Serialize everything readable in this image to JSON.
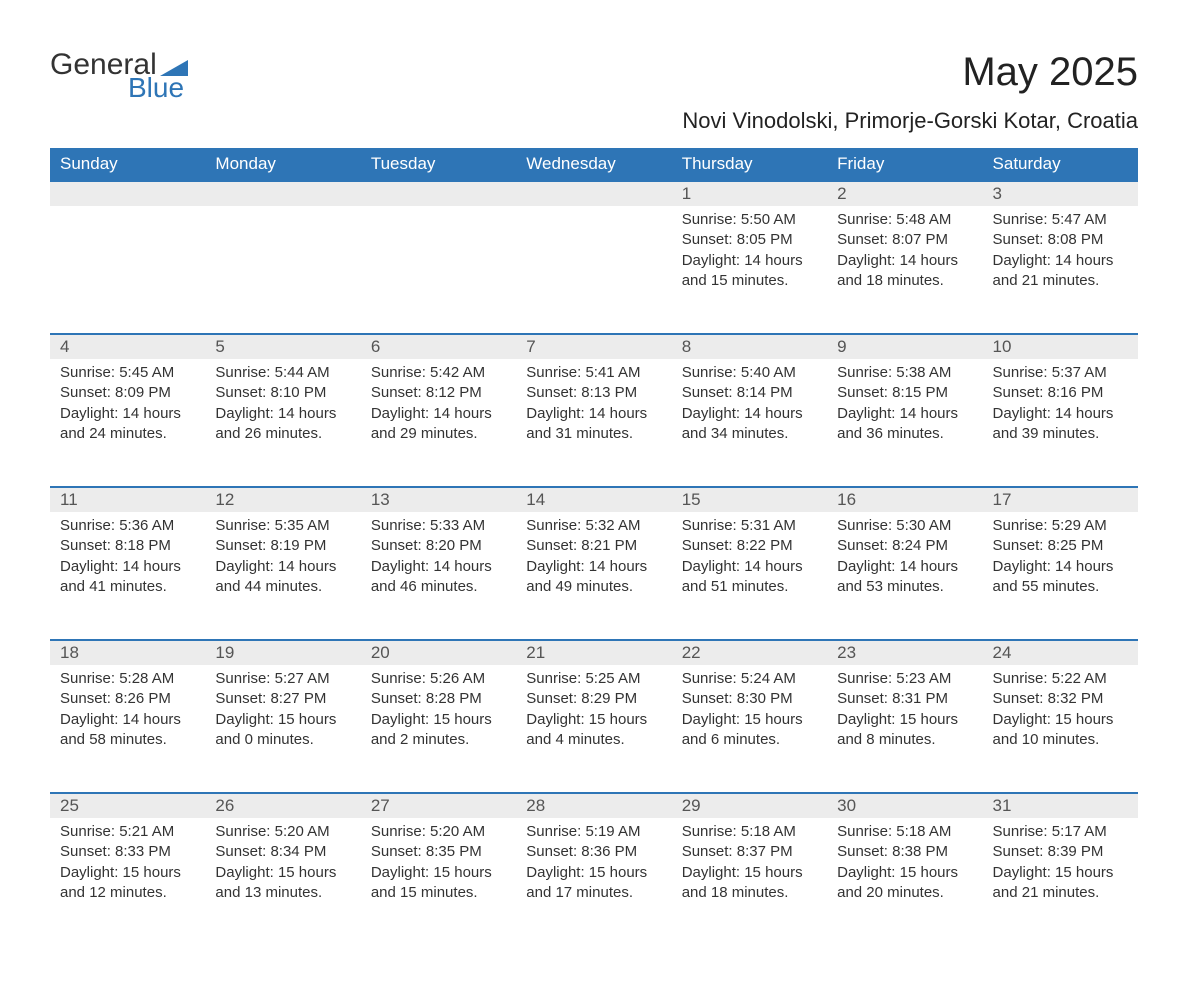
{
  "logo": {
    "line1": "General",
    "line2": "Blue",
    "accent_color": "#2e75b6"
  },
  "title": "May 2025",
  "subtitle": "Novi Vinodolski, Primorje-Gorski Kotar, Croatia",
  "colors": {
    "header_bg": "#2e75b6",
    "header_text": "#ffffff",
    "daynum_bg": "#ececec",
    "row_border": "#2e75b6",
    "body_text": "#333333"
  },
  "weekday_labels": [
    "Sunday",
    "Monday",
    "Tuesday",
    "Wednesday",
    "Thursday",
    "Friday",
    "Saturday"
  ],
  "weeks": [
    [
      null,
      null,
      null,
      null,
      {
        "n": "1",
        "sr": "Sunrise: 5:50 AM",
        "ss": "Sunset: 8:05 PM",
        "dl": "Daylight: 14 hours and 15 minutes."
      },
      {
        "n": "2",
        "sr": "Sunrise: 5:48 AM",
        "ss": "Sunset: 8:07 PM",
        "dl": "Daylight: 14 hours and 18 minutes."
      },
      {
        "n": "3",
        "sr": "Sunrise: 5:47 AM",
        "ss": "Sunset: 8:08 PM",
        "dl": "Daylight: 14 hours and 21 minutes."
      }
    ],
    [
      {
        "n": "4",
        "sr": "Sunrise: 5:45 AM",
        "ss": "Sunset: 8:09 PM",
        "dl": "Daylight: 14 hours and 24 minutes."
      },
      {
        "n": "5",
        "sr": "Sunrise: 5:44 AM",
        "ss": "Sunset: 8:10 PM",
        "dl": "Daylight: 14 hours and 26 minutes."
      },
      {
        "n": "6",
        "sr": "Sunrise: 5:42 AM",
        "ss": "Sunset: 8:12 PM",
        "dl": "Daylight: 14 hours and 29 minutes."
      },
      {
        "n": "7",
        "sr": "Sunrise: 5:41 AM",
        "ss": "Sunset: 8:13 PM",
        "dl": "Daylight: 14 hours and 31 minutes."
      },
      {
        "n": "8",
        "sr": "Sunrise: 5:40 AM",
        "ss": "Sunset: 8:14 PM",
        "dl": "Daylight: 14 hours and 34 minutes."
      },
      {
        "n": "9",
        "sr": "Sunrise: 5:38 AM",
        "ss": "Sunset: 8:15 PM",
        "dl": "Daylight: 14 hours and 36 minutes."
      },
      {
        "n": "10",
        "sr": "Sunrise: 5:37 AM",
        "ss": "Sunset: 8:16 PM",
        "dl": "Daylight: 14 hours and 39 minutes."
      }
    ],
    [
      {
        "n": "11",
        "sr": "Sunrise: 5:36 AM",
        "ss": "Sunset: 8:18 PM",
        "dl": "Daylight: 14 hours and 41 minutes."
      },
      {
        "n": "12",
        "sr": "Sunrise: 5:35 AM",
        "ss": "Sunset: 8:19 PM",
        "dl": "Daylight: 14 hours and 44 minutes."
      },
      {
        "n": "13",
        "sr": "Sunrise: 5:33 AM",
        "ss": "Sunset: 8:20 PM",
        "dl": "Daylight: 14 hours and 46 minutes."
      },
      {
        "n": "14",
        "sr": "Sunrise: 5:32 AM",
        "ss": "Sunset: 8:21 PM",
        "dl": "Daylight: 14 hours and 49 minutes."
      },
      {
        "n": "15",
        "sr": "Sunrise: 5:31 AM",
        "ss": "Sunset: 8:22 PM",
        "dl": "Daylight: 14 hours and 51 minutes."
      },
      {
        "n": "16",
        "sr": "Sunrise: 5:30 AM",
        "ss": "Sunset: 8:24 PM",
        "dl": "Daylight: 14 hours and 53 minutes."
      },
      {
        "n": "17",
        "sr": "Sunrise: 5:29 AM",
        "ss": "Sunset: 8:25 PM",
        "dl": "Daylight: 14 hours and 55 minutes."
      }
    ],
    [
      {
        "n": "18",
        "sr": "Sunrise: 5:28 AM",
        "ss": "Sunset: 8:26 PM",
        "dl": "Daylight: 14 hours and 58 minutes."
      },
      {
        "n": "19",
        "sr": "Sunrise: 5:27 AM",
        "ss": "Sunset: 8:27 PM",
        "dl": "Daylight: 15 hours and 0 minutes."
      },
      {
        "n": "20",
        "sr": "Sunrise: 5:26 AM",
        "ss": "Sunset: 8:28 PM",
        "dl": "Daylight: 15 hours and 2 minutes."
      },
      {
        "n": "21",
        "sr": "Sunrise: 5:25 AM",
        "ss": "Sunset: 8:29 PM",
        "dl": "Daylight: 15 hours and 4 minutes."
      },
      {
        "n": "22",
        "sr": "Sunrise: 5:24 AM",
        "ss": "Sunset: 8:30 PM",
        "dl": "Daylight: 15 hours and 6 minutes."
      },
      {
        "n": "23",
        "sr": "Sunrise: 5:23 AM",
        "ss": "Sunset: 8:31 PM",
        "dl": "Daylight: 15 hours and 8 minutes."
      },
      {
        "n": "24",
        "sr": "Sunrise: 5:22 AM",
        "ss": "Sunset: 8:32 PM",
        "dl": "Daylight: 15 hours and 10 minutes."
      }
    ],
    [
      {
        "n": "25",
        "sr": "Sunrise: 5:21 AM",
        "ss": "Sunset: 8:33 PM",
        "dl": "Daylight: 15 hours and 12 minutes."
      },
      {
        "n": "26",
        "sr": "Sunrise: 5:20 AM",
        "ss": "Sunset: 8:34 PM",
        "dl": "Daylight: 15 hours and 13 minutes."
      },
      {
        "n": "27",
        "sr": "Sunrise: 5:20 AM",
        "ss": "Sunset: 8:35 PM",
        "dl": "Daylight: 15 hours and 15 minutes."
      },
      {
        "n": "28",
        "sr": "Sunrise: 5:19 AM",
        "ss": "Sunset: 8:36 PM",
        "dl": "Daylight: 15 hours and 17 minutes."
      },
      {
        "n": "29",
        "sr": "Sunrise: 5:18 AM",
        "ss": "Sunset: 8:37 PM",
        "dl": "Daylight: 15 hours and 18 minutes."
      },
      {
        "n": "30",
        "sr": "Sunrise: 5:18 AM",
        "ss": "Sunset: 8:38 PM",
        "dl": "Daylight: 15 hours and 20 minutes."
      },
      {
        "n": "31",
        "sr": "Sunrise: 5:17 AM",
        "ss": "Sunset: 8:39 PM",
        "dl": "Daylight: 15 hours and 21 minutes."
      }
    ]
  ]
}
